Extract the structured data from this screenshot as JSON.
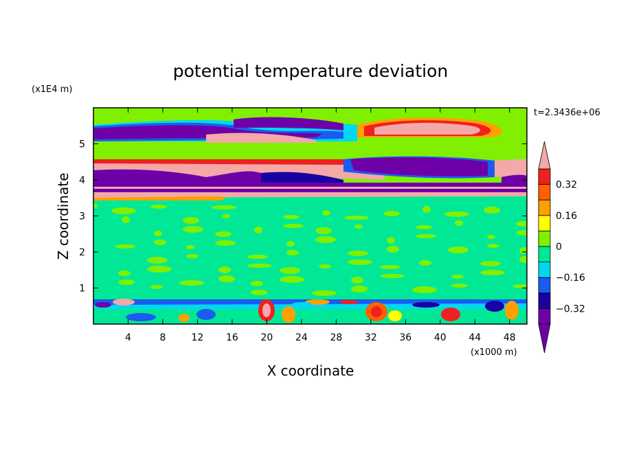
{
  "chart_data": {
    "type": "heatmap",
    "title": "potential temperature deviation",
    "xlabel": "X coordinate",
    "ylabel": "Z coordinate",
    "x_unit": "(x1000 m)",
    "y_unit": "(x1E4 m)",
    "time_label": "t=2.3436e+06",
    "xlim": [
      0,
      50
    ],
    "ylim": [
      0,
      6
    ],
    "x_ticks": [
      4,
      8,
      12,
      16,
      20,
      24,
      28,
      32,
      36,
      40,
      44,
      48
    ],
    "x_tick_labels": [
      "4",
      "8",
      "12",
      "16",
      "20",
      "24",
      "28",
      "32",
      "36",
      "40",
      "44",
      "48"
    ],
    "y_ticks": [
      1,
      2,
      3,
      4,
      5
    ],
    "y_tick_labels": [
      "1",
      "2",
      "3",
      "4",
      "5"
    ],
    "colorbar": {
      "levels": [
        -0.4,
        -0.32,
        -0.24,
        -0.16,
        -0.08,
        0,
        0.08,
        0.16,
        0.24,
        0.32,
        0.4
      ],
      "tick_values": [
        -0.32,
        -0.16,
        0,
        0.16,
        0.32
      ],
      "tick_labels": [
        "−0.32",
        "−0.16",
        "0",
        "0.16",
        "0.32"
      ],
      "colors": [
        "#6e00a8",
        "#1a00a0",
        "#1a5cf0",
        "#00d8f0",
        "#00e896",
        "#80f000",
        "#ffff00",
        "#ffa000",
        "#ff6000",
        "#f02020",
        "#f4a8a8"
      ],
      "below_color": "#6e00a8",
      "above_color": "#f4a8a8"
    },
    "layers": [
      {
        "z_range": [
          5.5,
          6.0
        ],
        "value": 0.0
      },
      {
        "z_range": [
          5.1,
          5.5
        ],
        "value": -0.36,
        "note": "negative band left, positive band right (x 28-48)"
      },
      {
        "z_range": [
          4.5,
          5.1
        ],
        "value": 0.0
      },
      {
        "z_range": [
          4.0,
          4.5
        ],
        "value": 0.36,
        "note": "positive left (x 0-28), negative right (x 29-46)"
      },
      {
        "z_range": [
          3.5,
          4.0
        ],
        "value": -0.36,
        "note": "alternating thin positive/negative bands"
      },
      {
        "z_range": [
          0.75,
          3.5
        ],
        "value": 0.0
      },
      {
        "z_range": [
          0.0,
          0.75
        ],
        "value": 0.0,
        "note": "turbulent layer with scattered ±0.3 eddies near x 18-22, 30-34, 40-42"
      }
    ]
  }
}
